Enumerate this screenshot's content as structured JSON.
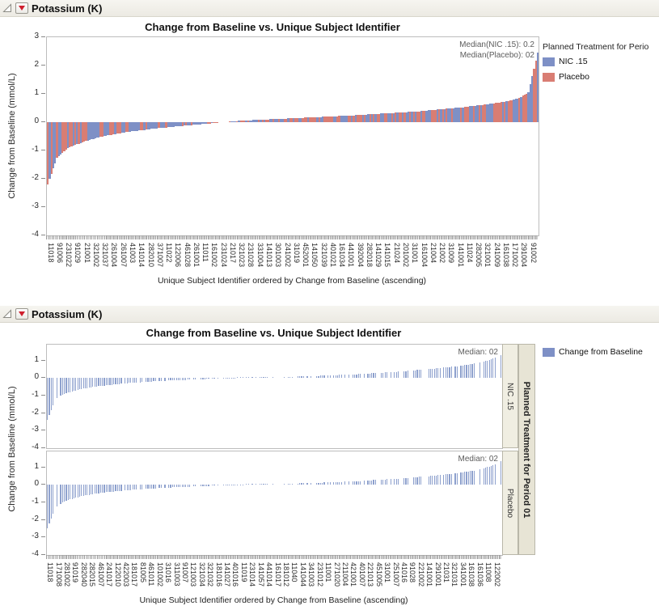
{
  "panels": [
    {
      "header": {
        "title": "Potassium (K)"
      }
    },
    {
      "header": {
        "title": "Potassium (K)"
      }
    }
  ],
  "chart_data": [
    {
      "type": "bar",
      "variant": "waterfall",
      "title": "Change from Baseline vs. Unique Subject Identifier",
      "xlabel": "Unique Subject Identifier ordered by Change from Baseline (ascending)",
      "ylabel": "Change from Baseline (mmol/L)",
      "ylim": [
        -4,
        3
      ],
      "yticks": [
        3,
        2,
        1,
        0,
        -1,
        -2,
        -3,
        -4
      ],
      "grid": false,
      "bar_count": 270,
      "x_tick_labels": [
        "11018",
        "91006",
        "231022",
        "91029",
        "21001",
        "321002",
        "321037",
        "261004",
        "261007",
        "41003",
        "141014",
        "282010",
        "371007",
        "11022",
        "122006",
        "461028",
        "261001",
        "11011",
        "161002",
        "231024",
        "21017",
        "321023",
        "231028",
        "331004",
        "141013",
        "301003",
        "241002",
        "31019",
        "452001",
        "141050",
        "321039",
        "401021",
        "161034",
        "441001",
        "392004",
        "282018",
        "141029",
        "141015",
        "21024",
        "201002",
        "31001",
        "161004",
        "21004",
        "21002",
        "31009",
        "141001",
        "11024",
        "282005",
        "321001",
        "241009",
        "161038",
        "171002",
        "291004",
        "91002"
      ],
      "values_at_ticks": [
        -2.2,
        -1.25,
        -0.95,
        -0.8,
        -0.68,
        -0.58,
        -0.5,
        -0.44,
        -0.38,
        -0.33,
        -0.29,
        -0.25,
        -0.21,
        -0.18,
        -0.15,
        -0.12,
        -0.09,
        -0.06,
        -0.03,
        0,
        0.03,
        0.05,
        0.07,
        0.09,
        0.1,
        0.12,
        0.13,
        0.15,
        0.16,
        0.18,
        0.19,
        0.21,
        0.22,
        0.24,
        0.26,
        0.28,
        0.3,
        0.32,
        0.34,
        0.36,
        0.38,
        0.41,
        0.44,
        0.47,
        0.5,
        0.53,
        0.57,
        0.61,
        0.65,
        0.7,
        0.76,
        0.85,
        1.05,
        2.45
      ],
      "values_note": "ascending waterfall envelope sampled at each x tick; bars of the two treatments are interleaved",
      "annotations": [
        "Median(NIC .15): 0.2",
        "Median(Placebo): 02"
      ],
      "series": [
        {
          "name": "NIC .15",
          "color": "#7E90C6"
        },
        {
          "name": "Placebo",
          "color": "#D97D73"
        }
      ],
      "legend": {
        "title": "Planned Treatment for Perio",
        "position": "right",
        "entries": [
          "NIC .15",
          "Placebo"
        ]
      }
    },
    {
      "type": "bar",
      "variant": "waterfall-grouped-rows",
      "title": "Change from Baseline vs. Unique Subject Identifier",
      "xlabel": "Unique Subject Identifier ordered by Change from Baseline (ascending)",
      "ylabel": "Change from Baseline (mmol/L)",
      "ylim": [
        -4,
        1.9
      ],
      "yticks": [
        1,
        0,
        -1,
        -2,
        -3,
        -4
      ],
      "grid": false,
      "bar_count": 240,
      "bar_color": "#8DA0CD",
      "x_tick_labels": [
        "11018",
        "171008",
        "281002",
        "91019",
        "282040",
        "282015",
        "461007",
        "241017",
        "122010",
        "422003",
        "181017",
        "81005",
        "461011",
        "101002",
        "31016",
        "311003",
        "91007",
        "121003",
        "321034",
        "321032",
        "181016",
        "141027",
        "401016",
        "11019",
        "231014",
        "141057",
        "441014",
        "161017",
        "181012",
        "11040",
        "141044",
        "341003",
        "231012",
        "11001",
        "271020",
        "211004",
        "421001",
        "401007",
        "221013",
        "451005",
        "31001",
        "251007",
        "41016",
        "91028",
        "221002",
        "141001",
        "291001",
        "21031",
        "321031",
        "341001",
        "161038",
        "161036",
        "11008",
        "122002"
      ],
      "group_strip_title": "Planned Treatment for Period 01",
      "rows": [
        {
          "label": "NIC .15",
          "median_label": "Median: 02",
          "values_at_ticks": [
            -2.4,
            -1.15,
            -0.9,
            -0.75,
            -0.63,
            -0.54,
            -0.47,
            -0.41,
            -0.36,
            -0.31,
            -0.27,
            -0.24,
            -0.21,
            -0.18,
            -0.15,
            -0.13,
            -0.11,
            -0.09,
            -0.07,
            -0.05,
            -0.03,
            -0.01,
            0,
            0.01,
            0.02,
            0.03,
            0.04,
            0.05,
            0.06,
            0.08,
            0.09,
            0.11,
            0.13,
            0.15,
            0.17,
            0.19,
            0.21,
            0.24,
            0.27,
            0.3,
            0.33,
            0.36,
            0.4,
            0.44,
            0.48,
            0.52,
            0.57,
            0.62,
            0.68,
            0.75,
            0.83,
            0.93,
            1.08,
            1.3
          ]
        },
        {
          "label": "Placebo",
          "median_label": "Median: 02",
          "values_at_ticks": [
            -2.5,
            -1.25,
            -0.95,
            -0.78,
            -0.65,
            -0.56,
            -0.48,
            -0.42,
            -0.37,
            -0.32,
            -0.28,
            -0.25,
            -0.22,
            -0.19,
            -0.16,
            -0.14,
            -0.12,
            -0.1,
            -0.08,
            -0.06,
            -0.04,
            -0.02,
            -0.01,
            0,
            0.01,
            0.02,
            0.03,
            0.05,
            0.06,
            0.07,
            0.09,
            0.1,
            0.12,
            0.14,
            0.16,
            0.18,
            0.2,
            0.23,
            0.26,
            0.29,
            0.32,
            0.35,
            0.39,
            0.43,
            0.47,
            0.51,
            0.56,
            0.61,
            0.67,
            0.74,
            0.82,
            0.93,
            1.1,
            1.35
          ]
        }
      ],
      "legend": {
        "position": "right",
        "entries": [
          {
            "label": "Change from Baseline",
            "color": "#7E90C6"
          }
        ]
      }
    }
  ]
}
